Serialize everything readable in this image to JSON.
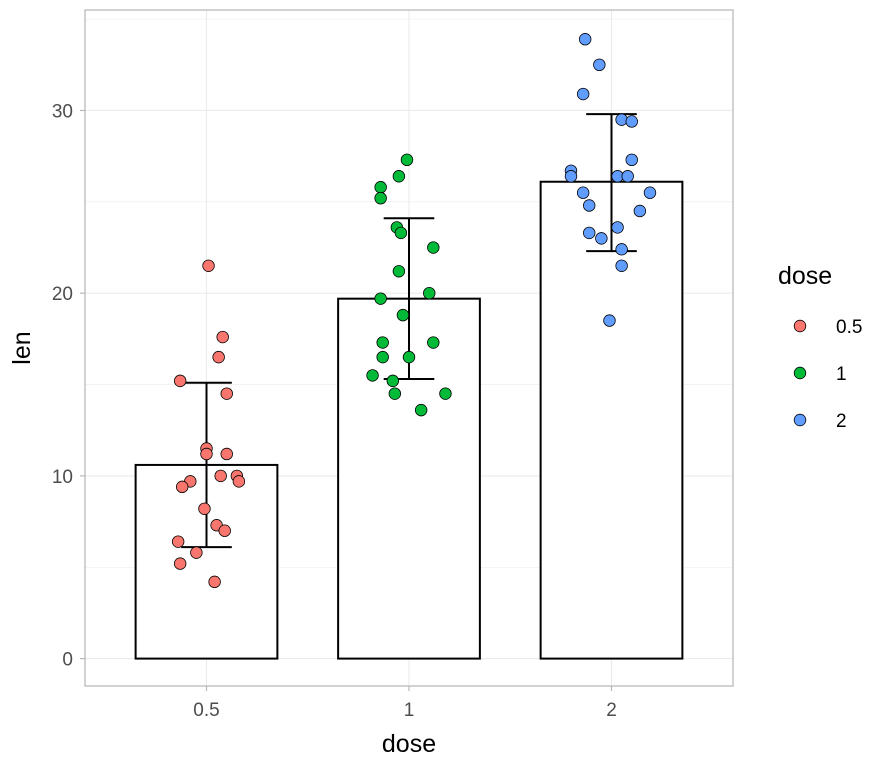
{
  "chart_data": {
    "type": "bar",
    "title": "",
    "xlabel": "dose",
    "ylabel": "len",
    "categories": [
      "0.5",
      "1",
      "2"
    ],
    "ylim": [
      -1.5,
      35.5
    ],
    "y_ticks": [
      0,
      10,
      20,
      30
    ],
    "y_tick_labels": [
      "0",
      "10",
      "20",
      "30"
    ],
    "grid": true,
    "means": [
      10.6,
      19.7,
      26.1
    ],
    "error_bars": [
      {
        "low": 6.1,
        "high": 15.1
      },
      {
        "low": 15.3,
        "high": 24.1
      },
      {
        "low": 22.3,
        "high": 29.8
      }
    ],
    "legend": {
      "title": "dose",
      "position": "right",
      "entries": [
        {
          "label": "0.5",
          "color": "#F8766D"
        },
        {
          "label": "1",
          "color": "#00BA38"
        },
        {
          "label": "2",
          "color": "#619CFF"
        }
      ]
    },
    "points": [
      {
        "name": "0.5",
        "color": "#F8766D",
        "data": [
          {
            "x": 0.51,
            "y": 21.5
          },
          {
            "x": 0.58,
            "y": 17.6
          },
          {
            "x": 0.56,
            "y": 16.5
          },
          {
            "x": 0.37,
            "y": 15.2
          },
          {
            "x": 0.6,
            "y": 14.5
          },
          {
            "x": 0.5,
            "y": 11.5
          },
          {
            "x": 0.5,
            "y": 11.2
          },
          {
            "x": 0.6,
            "y": 11.2
          },
          {
            "x": 0.57,
            "y": 10.0
          },
          {
            "x": 0.65,
            "y": 10.0
          },
          {
            "x": 0.66,
            "y": 9.7
          },
          {
            "x": 0.42,
            "y": 9.7
          },
          {
            "x": 0.38,
            "y": 9.4
          },
          {
            "x": 0.49,
            "y": 8.2
          },
          {
            "x": 0.55,
            "y": 7.3
          },
          {
            "x": 0.59,
            "y": 7.0
          },
          {
            "x": 0.36,
            "y": 6.4
          },
          {
            "x": 0.45,
            "y": 5.8
          },
          {
            "x": 0.37,
            "y": 5.2
          },
          {
            "x": 0.54,
            "y": 4.2
          }
        ]
      },
      {
        "name": "1",
        "color": "#00BA38",
        "data": [
          {
            "x": 0.99,
            "y": 27.3
          },
          {
            "x": 0.95,
            "y": 26.4
          },
          {
            "x": 0.86,
            "y": 25.8
          },
          {
            "x": 0.86,
            "y": 25.2
          },
          {
            "x": 0.94,
            "y": 23.6
          },
          {
            "x": 0.96,
            "y": 23.3
          },
          {
            "x": 1.12,
            "y": 22.5
          },
          {
            "x": 0.95,
            "y": 21.2
          },
          {
            "x": 1.1,
            "y": 20.0
          },
          {
            "x": 0.86,
            "y": 19.7
          },
          {
            "x": 0.97,
            "y": 18.8
          },
          {
            "x": 0.87,
            "y": 17.3
          },
          {
            "x": 1.12,
            "y": 17.3
          },
          {
            "x": 0.87,
            "y": 16.5
          },
          {
            "x": 1.0,
            "y": 16.5
          },
          {
            "x": 0.82,
            "y": 15.5
          },
          {
            "x": 0.92,
            "y": 15.2
          },
          {
            "x": 0.93,
            "y": 14.5
          },
          {
            "x": 1.18,
            "y": 14.5
          },
          {
            "x": 1.06,
            "y": 13.6
          }
        ]
      },
      {
        "name": "2",
        "color": "#619CFF",
        "data": [
          {
            "x": 1.87,
            "y": 33.9
          },
          {
            "x": 1.94,
            "y": 32.5
          },
          {
            "x": 1.86,
            "y": 30.9
          },
          {
            "x": 2.05,
            "y": 29.5
          },
          {
            "x": 2.1,
            "y": 29.4
          },
          {
            "x": 2.1,
            "y": 27.3
          },
          {
            "x": 1.8,
            "y": 26.7
          },
          {
            "x": 1.8,
            "y": 26.4
          },
          {
            "x": 2.03,
            "y": 26.4
          },
          {
            "x": 2.08,
            "y": 26.4
          },
          {
            "x": 1.86,
            "y": 25.5
          },
          {
            "x": 2.19,
            "y": 25.5
          },
          {
            "x": 1.89,
            "y": 24.8
          },
          {
            "x": 2.14,
            "y": 24.5
          },
          {
            "x": 2.03,
            "y": 23.6
          },
          {
            "x": 1.89,
            "y": 23.3
          },
          {
            "x": 1.95,
            "y": 23.0
          },
          {
            "x": 2.05,
            "y": 22.4
          },
          {
            "x": 2.05,
            "y": 21.5
          },
          {
            "x": 1.99,
            "y": 18.5
          }
        ]
      }
    ]
  }
}
